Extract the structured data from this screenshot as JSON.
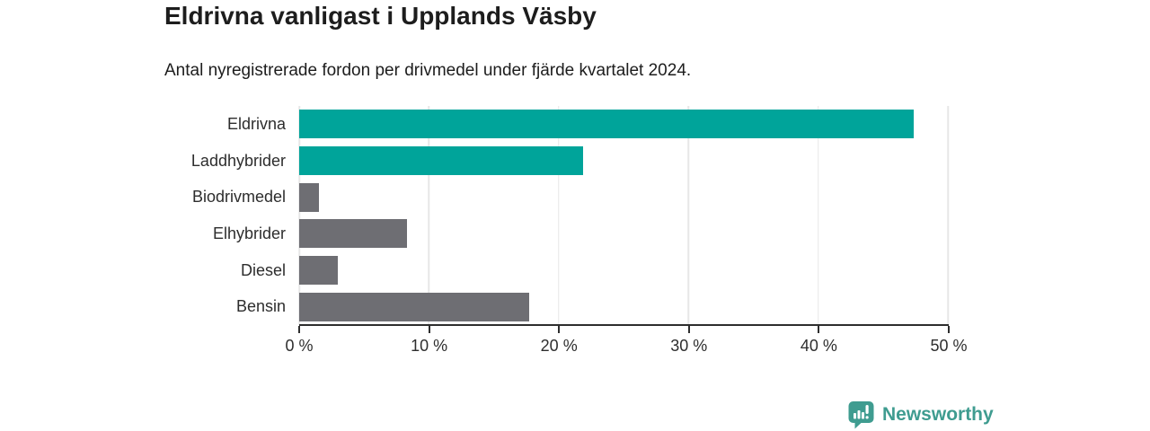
{
  "header": {
    "title": "Eldrivna vanligast i Upplands Väsby",
    "subtitle": "Antal nyregistrerade fordon per drivmedel under fjärde kvartalet 2024."
  },
  "footer": {
    "brand": "Newsworthy"
  },
  "colors": {
    "highlight_bar": "#00a49a",
    "default_bar": "#6e6e73",
    "brand_teal": "#3f9c90",
    "gridline": "#e7e7e7",
    "axis": "#2e2e2e",
    "text": "#1d1d1d"
  },
  "icons": {
    "brand_icon": "newsworthy-speech-bubble-bar-chart-icon"
  },
  "chart_data": {
    "type": "bar",
    "orientation": "horizontal",
    "title": "Eldrivna vanligast i Upplands Väsby",
    "subtitle": "Antal nyregistrerade fordon per drivmedel under fjärde kvartalet 2024.",
    "categories": [
      "Eldrivna",
      "Laddhybrider",
      "Biodrivmedel",
      "Elhybrider",
      "Diesel",
      "Bensin"
    ],
    "values": [
      47.4,
      21.9,
      1.5,
      8.3,
      3.0,
      17.7
    ],
    "unit": "%",
    "bar_colors": [
      "#00a49a",
      "#00a49a",
      "#6e6e73",
      "#6e6e73",
      "#6e6e73",
      "#6e6e73"
    ],
    "xlabel": "",
    "ylabel": "",
    "xlim": [
      0,
      50
    ],
    "xticks": [
      0,
      10,
      20,
      30,
      40,
      50
    ],
    "xtick_labels": [
      "0 %",
      "10 %",
      "20 %",
      "30 %",
      "40 %",
      "50 %"
    ],
    "grid": "vertical",
    "legend": "none"
  }
}
